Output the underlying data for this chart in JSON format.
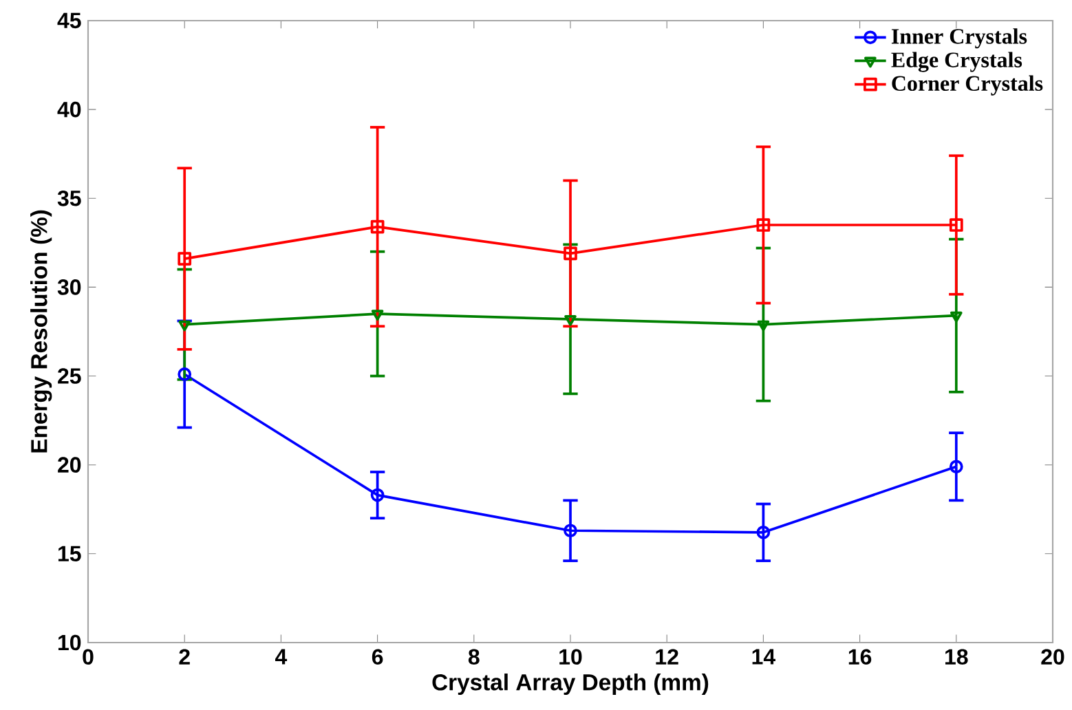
{
  "chart_data": {
    "type": "line",
    "xlabel": "Crystal Array Depth (mm)",
    "ylabel": "Energy Resolution (%)",
    "x": [
      2,
      6,
      10,
      14,
      18
    ],
    "series": [
      {
        "name": "Inner Crystals",
        "color": "#0000ff",
        "marker": "circle",
        "values": [
          25.1,
          18.3,
          16.3,
          16.2,
          19.9
        ],
        "errors": [
          3.0,
          1.3,
          1.7,
          1.6,
          1.9
        ]
      },
      {
        "name": "Edge Crystals",
        "color": "#008000",
        "marker": "triangle",
        "values": [
          27.9,
          28.5,
          28.2,
          27.9,
          28.4
        ],
        "errors": [
          3.1,
          3.5,
          4.2,
          4.3,
          4.3
        ]
      },
      {
        "name": "Corner Crystals",
        "color": "#ff0000",
        "marker": "square",
        "values": [
          31.6,
          33.4,
          31.9,
          33.5,
          33.5
        ],
        "errors": [
          5.1,
          5.6,
          4.1,
          4.4,
          3.9
        ]
      }
    ],
    "xlim": [
      0,
      20
    ],
    "xticks": [
      0,
      2,
      4,
      6,
      8,
      10,
      12,
      14,
      16,
      18,
      20
    ],
    "ylim": [
      10,
      45
    ],
    "yticks": [
      10,
      15,
      20,
      25,
      30,
      35,
      40,
      45
    ],
    "grid": false,
    "legend": "top right",
    "line_style": "solid"
  }
}
